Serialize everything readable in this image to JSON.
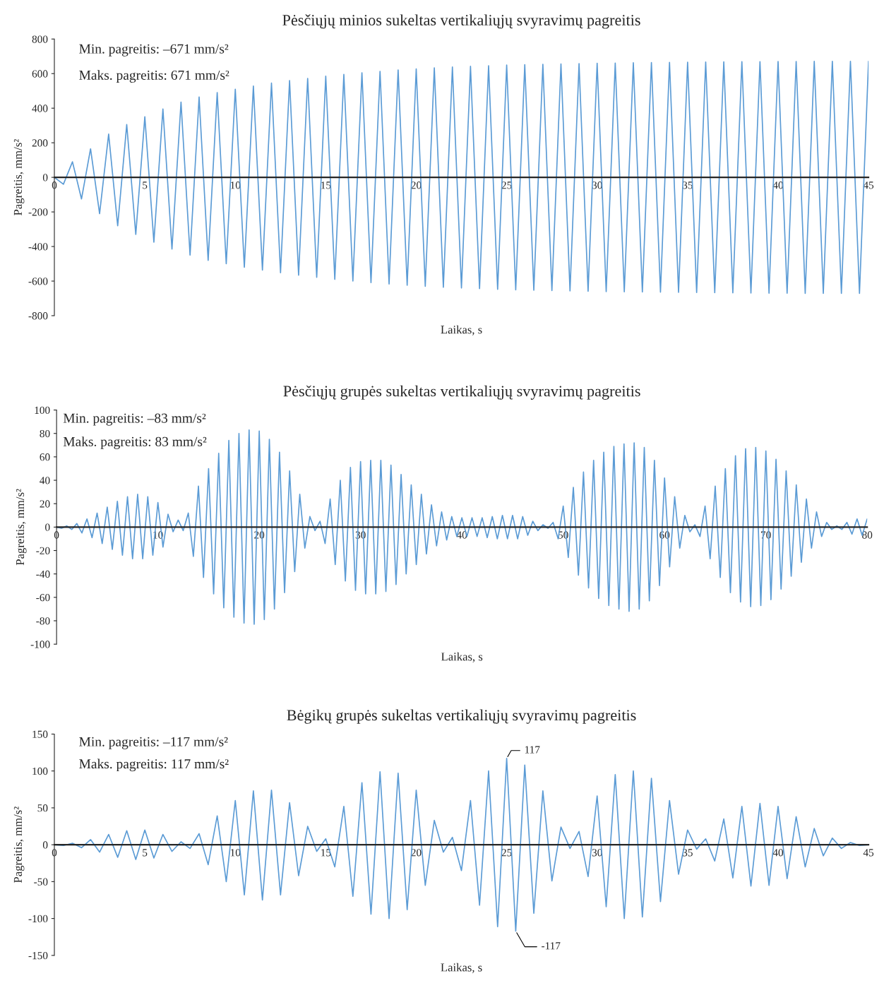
{
  "chart_data": [
    {
      "type": "line",
      "title": "Pėsčiųjų minios sukeltas vertikaliųjų svyravimų pagreitis",
      "xlabel": "Laikas, s",
      "ylabel": "Pagreitis, mm/s²",
      "annotations": [
        "Min. pagreitis: –671 mm/s²",
        "Maks. pagreitis: 671 mm/s²"
      ],
      "xlim": [
        0,
        45
      ],
      "ylim": [
        -800,
        800
      ],
      "xticks": [
        0,
        5,
        10,
        15,
        20,
        25,
        30,
        35,
        40,
        45
      ],
      "yticks": [
        -800,
        -600,
        -400,
        -200,
        0,
        200,
        400,
        600,
        800
      ],
      "x": [
        0,
        0.5,
        1,
        1.5,
        2,
        2.5,
        3,
        3.5,
        4,
        4.5,
        5,
        5.5,
        6,
        6.5,
        7,
        7.5,
        8,
        8.5,
        9,
        9.5,
        10,
        10.5,
        11,
        11.5,
        12,
        12.5,
        13,
        13.5,
        14,
        14.5,
        15,
        15.5,
        16,
        16.5,
        17,
        17.5,
        18,
        18.5,
        19,
        19.5,
        20,
        20.5,
        21,
        21.5,
        22,
        22.5,
        23,
        23.5,
        24,
        24.5,
        25,
        25.5,
        26,
        26.5,
        27,
        27.5,
        28,
        28.5,
        29,
        29.5,
        30,
        30.5,
        31,
        31.5,
        32,
        32.5,
        33,
        33.5,
        34,
        34.5,
        35,
        35.5,
        36,
        36.5,
        37,
        37.5,
        38,
        38.5,
        39,
        39.5,
        40,
        40.5,
        41,
        41.5,
        42,
        42.5,
        43,
        43.5,
        44,
        44.5,
        45
      ],
      "series": [
        {
          "color": "#5b9bd5",
          "values": [
            0,
            -40,
            90,
            -125,
            165,
            -210,
            250,
            -280,
            305,
            -330,
            350,
            -375,
            395,
            -415,
            435,
            -450,
            465,
            -480,
            490,
            -500,
            510,
            -520,
            528,
            -536,
            545,
            -552,
            560,
            -566,
            572,
            -578,
            585,
            -590,
            595,
            -600,
            605,
            -609,
            613,
            -617,
            621,
            -624,
            627,
            -630,
            633,
            -636,
            638,
            -640,
            642,
            -644,
            646,
            -648,
            650,
            -651,
            652,
            -653,
            654,
            -655,
            656,
            -657,
            658,
            -659,
            660,
            -661,
            661,
            -662,
            663,
            -663,
            664,
            -664,
            665,
            -665,
            666,
            -666,
            667,
            -667,
            668,
            -668,
            669,
            -669,
            669,
            -670,
            670,
            -670,
            670,
            -671,
            671,
            -671,
            671,
            -671,
            671,
            -671,
            671
          ]
        }
      ]
    },
    {
      "type": "line",
      "title": "Pėsčiųjų grupės sukeltas vertikaliųjų svyravimų pagreitis",
      "xlabel": "Laikas, s",
      "ylabel": "Pagreitis, mm/s²",
      "annotations": [
        "Min. pagreitis: –83 mm/s²",
        "Maks. pagreitis: 83 mm/s²"
      ],
      "xlim": [
        0,
        80
      ],
      "ylim": [
        -100,
        100
      ],
      "xticks": [
        0,
        10,
        20,
        30,
        40,
        50,
        60,
        70,
        80
      ],
      "yticks": [
        -100,
        -80,
        -60,
        -40,
        -20,
        0,
        20,
        40,
        60,
        80,
        100
      ],
      "x": [
        0,
        0.5,
        1,
        1.5,
        2,
        2.5,
        3,
        3.5,
        4,
        4.5,
        5,
        5.5,
        6,
        6.5,
        7,
        7.5,
        8,
        8.5,
        9,
        9.5,
        10,
        10.5,
        11,
        11.5,
        12,
        12.5,
        13,
        13.5,
        14,
        14.5,
        15,
        15.5,
        16,
        16.5,
        17,
        17.5,
        18,
        18.5,
        19,
        19.5,
        20,
        20.5,
        21,
        21.5,
        22,
        22.5,
        23,
        23.5,
        24,
        24.5,
        25,
        25.5,
        26,
        26.5,
        27,
        27.5,
        28,
        28.5,
        29,
        29.5,
        30,
        30.5,
        31,
        31.5,
        32,
        32.5,
        33,
        33.5,
        34,
        34.5,
        35,
        35.5,
        36,
        36.5,
        37,
        37.5,
        38,
        38.5,
        39,
        39.5,
        40,
        40.5,
        41,
        41.5,
        42,
        42.5,
        43,
        43.5,
        44,
        44.5,
        45,
        45.5,
        46,
        46.5,
        47,
        47.5,
        48,
        48.5,
        49,
        49.5,
        50,
        50.5,
        51,
        51.5,
        52,
        52.5,
        53,
        53.5,
        54,
        54.5,
        55,
        55.5,
        56,
        56.5,
        57,
        57.5,
        58,
        58.5,
        59,
        59.5,
        60,
        60.5,
        61,
        61.5,
        62,
        62.5,
        63,
        63.5,
        64,
        64.5,
        65,
        65.5,
        66,
        66.5,
        67,
        67.5,
        68,
        68.5,
        69,
        69.5,
        70,
        70.5,
        71,
        71.5,
        72,
        72.5,
        73,
        73.5,
        74,
        74.5,
        75,
        75.5,
        76,
        76.5,
        77,
        77.5,
        78,
        78.5,
        79,
        79.5,
        80
      ],
      "series": [
        {
          "color": "#5b9bd5",
          "values": [
            0,
            -1,
            1,
            -2,
            3,
            -5,
            7,
            -9,
            12,
            -14,
            17,
            -19,
            22,
            -24,
            26,
            -27,
            28,
            -27,
            26,
            -24,
            21,
            -17,
            11,
            -4,
            6,
            -3,
            12,
            -25,
            35,
            -43,
            50,
            -57,
            63,
            -69,
            74,
            -77,
            80,
            -82,
            83,
            -83,
            82,
            -79,
            75,
            -70,
            64,
            -56,
            48,
            -38,
            28,
            -18,
            9,
            -3,
            5,
            -14,
            24,
            -32,
            40,
            -46,
            51,
            -54,
            56,
            -57,
            57,
            -57,
            57,
            -55,
            53,
            -49,
            45,
            -40,
            36,
            -32,
            28,
            -23,
            19,
            -16,
            13,
            -11,
            9,
            -8,
            8,
            -8,
            8,
            -8,
            8,
            -9,
            9,
            -10,
            10,
            -10,
            10,
            -10,
            9,
            -7,
            5,
            -3,
            2,
            -1,
            4,
            -10,
            18,
            -26,
            34,
            -41,
            47,
            -52,
            57,
            -61,
            64,
            -67,
            69,
            -70,
            71,
            -72,
            72,
            -70,
            68,
            -63,
            57,
            -50,
            42,
            -34,
            26,
            -18,
            10,
            -4,
            2,
            -8,
            18,
            -27,
            35,
            -43,
            50,
            -56,
            61,
            -64,
            67,
            -68,
            68,
            -67,
            65,
            -62,
            58,
            -53,
            48,
            -42,
            36,
            -30,
            24,
            -18,
            13,
            -8,
            4,
            -2,
            1,
            -2,
            4,
            -6,
            7,
            -7,
            7
          ]
        }
      ]
    },
    {
      "type": "line",
      "title": "Bėgikų grupės sukeltas vertikaliųjų svyravimų pagreitis",
      "xlabel": "Laikas, s",
      "ylabel": "Pagreitis, mm/s²",
      "annotations": [
        "Min. pagreitis: –117 mm/s²",
        "Maks. pagreitis: 117 mm/s²",
        {
          "text": "117",
          "x": 25,
          "y": 117
        },
        {
          "text": "-117",
          "x": 25.5,
          "y": -117
        }
      ],
      "xlim": [
        0,
        45
      ],
      "ylim": [
        -150,
        150
      ],
      "xticks": [
        0,
        5,
        10,
        15,
        20,
        25,
        30,
        35,
        40,
        45
      ],
      "yticks": [
        -150,
        -100,
        -50,
        0,
        50,
        100,
        150
      ],
      "x": [
        0,
        0.5,
        1,
        1.5,
        2,
        2.5,
        3,
        3.5,
        4,
        4.5,
        5,
        5.5,
        6,
        6.5,
        7,
        7.5,
        8,
        8.5,
        9,
        9.5,
        10,
        10.5,
        11,
        11.5,
        12,
        12.5,
        13,
        13.5,
        14,
        14.5,
        15,
        15.5,
        16,
        16.5,
        17,
        17.5,
        18,
        18.5,
        19,
        19.5,
        20,
        20.5,
        21,
        21.5,
        22,
        22.5,
        23,
        23.5,
        24,
        24.5,
        25,
        25.5,
        26,
        26.5,
        27,
        27.5,
        28,
        28.5,
        29,
        29.5,
        30,
        30.5,
        31,
        31.5,
        32,
        32.5,
        33,
        33.5,
        34,
        34.5,
        35,
        35.5,
        36,
        36.5,
        37,
        37.5,
        38,
        38.5,
        39,
        39.5,
        40,
        40.5,
        41,
        41.5,
        42,
        42.5,
        43,
        43.5,
        44,
        44.5,
        45
      ],
      "series": [
        {
          "color": "#5b9bd5",
          "values": [
            0,
            -1,
            2,
            -4,
            7,
            -10,
            14,
            -17,
            19,
            -20,
            20,
            -18,
            14,
            -9,
            4,
            -5,
            15,
            -27,
            39,
            -50,
            60,
            -68,
            73,
            -75,
            74,
            -68,
            57,
            -42,
            25,
            -9,
            8,
            -30,
            52,
            -70,
            84,
            -94,
            99,
            -100,
            97,
            -88,
            74,
            -55,
            33,
            -10,
            10,
            -35,
            60,
            -82,
            100,
            -111,
            117,
            -117,
            108,
            -93,
            73,
            -49,
            24,
            -5,
            18,
            -43,
            66,
            -84,
            95,
            -100,
            100,
            -98,
            90,
            -77,
            60,
            -40,
            20,
            -6,
            8,
            -22,
            35,
            -45,
            52,
            -56,
            56,
            -55,
            52,
            -46,
            38,
            -30,
            22,
            -15,
            9,
            -5,
            3,
            -1,
            0
          ]
        }
      ]
    }
  ]
}
